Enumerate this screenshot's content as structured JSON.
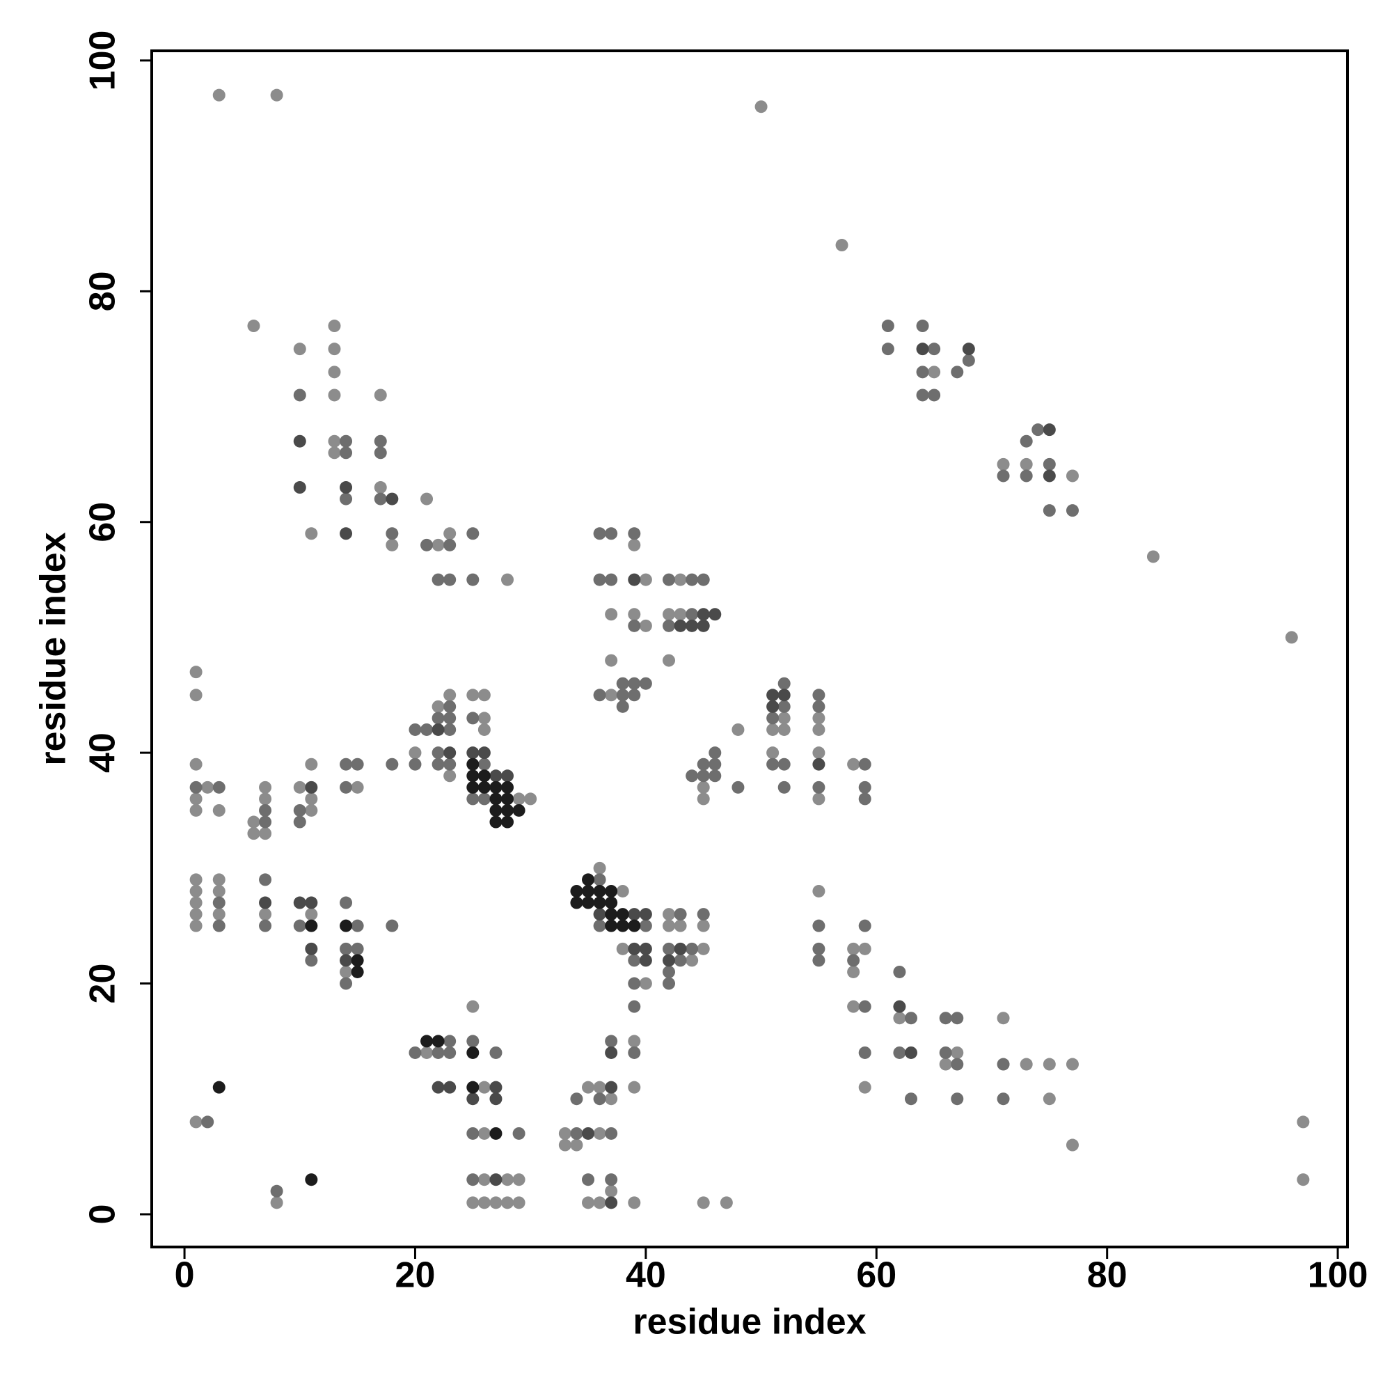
{
  "chart_data": {
    "type": "scatter",
    "x_label": "residue index",
    "y_label": "residue index",
    "xlim": [
      -2.84,
      100.84
    ],
    "ylim": [
      -2.84,
      100.84
    ],
    "xticks": [
      0,
      20,
      40,
      60,
      80,
      100
    ],
    "yticks": [
      0,
      20,
      40,
      60,
      80,
      100
    ],
    "grid": false,
    "series": [
      {
        "color": "#8c8c8c",
        "x": [
          1,
          1,
          1,
          1,
          1,
          1,
          1,
          1,
          1,
          1,
          1,
          2,
          3,
          3,
          3,
          3,
          3,
          6,
          6,
          6,
          7,
          7,
          7,
          7,
          8,
          8,
          10,
          10,
          11,
          11,
          11,
          11,
          11,
          13,
          13,
          13,
          13,
          13,
          13,
          14,
          15,
          17,
          17,
          18,
          20,
          21,
          21,
          22,
          22,
          23,
          23,
          23,
          25,
          25,
          25,
          26,
          26,
          26,
          26,
          26,
          26,
          26,
          27,
          28,
          28,
          28,
          29,
          29,
          29,
          30,
          33,
          33,
          34,
          35,
          35,
          36,
          36,
          36,
          36,
          37,
          37,
          37,
          37,
          37,
          38,
          38,
          39,
          39,
          39,
          39,
          39,
          40,
          40,
          40,
          42,
          42,
          42,
          42,
          43,
          43,
          43,
          44,
          45,
          45,
          45,
          45,
          45,
          47,
          48,
          50,
          51,
          51,
          52,
          52,
          55,
          55,
          55,
          55,
          55,
          57,
          58,
          58,
          58,
          58,
          59,
          59,
          62,
          65,
          66,
          67,
          71,
          71,
          73,
          73,
          75,
          75,
          77,
          77,
          77,
          84,
          96,
          97,
          97
        ],
        "y": [
          47,
          45,
          39,
          36,
          35,
          29,
          28,
          27,
          26,
          25,
          8,
          37,
          97,
          35,
          29,
          28,
          26,
          77,
          34,
          33,
          37,
          36,
          33,
          26,
          97,
          1,
          75,
          37,
          59,
          39,
          36,
          35,
          26,
          77,
          75,
          73,
          71,
          67,
          66,
          21,
          37,
          71,
          63,
          58,
          40,
          62,
          14,
          58,
          44,
          59,
          45,
          38,
          45,
          18,
          1,
          45,
          43,
          42,
          11,
          7,
          3,
          1,
          1,
          55,
          3,
          1,
          36,
          3,
          1,
          36,
          7,
          6,
          6,
          11,
          1,
          30,
          11,
          7,
          1,
          52,
          48,
          45,
          10,
          2,
          28,
          23,
          58,
          52,
          15,
          11,
          1,
          55,
          51,
          20,
          52,
          48,
          26,
          25,
          55,
          52,
          25,
          22,
          37,
          36,
          25,
          23,
          1,
          1,
          42,
          96,
          42,
          40,
          43,
          42,
          43,
          42,
          40,
          36,
          28,
          84,
          39,
          23,
          21,
          18,
          23,
          11,
          17,
          73,
          13,
          14,
          65,
          17,
          65,
          13,
          13,
          10,
          64,
          13,
          6,
          57,
          50,
          8,
          3
        ]
      },
      {
        "color": "#6e6e6e",
        "x": [
          1,
          2,
          3,
          3,
          3,
          7,
          7,
          7,
          7,
          8,
          10,
          10,
          10,
          10,
          11,
          14,
          14,
          14,
          14,
          14,
          14,
          14,
          14,
          15,
          15,
          15,
          17,
          17,
          17,
          18,
          18,
          18,
          20,
          20,
          20,
          21,
          21,
          22,
          22,
          22,
          22,
          22,
          23,
          23,
          23,
          23,
          23,
          23,
          23,
          23,
          25,
          25,
          25,
          25,
          25,
          25,
          25,
          26,
          26,
          27,
          29,
          34,
          34,
          35,
          36,
          36,
          36,
          36,
          36,
          36,
          37,
          37,
          37,
          37,
          37,
          38,
          38,
          38,
          39,
          39,
          39,
          39,
          39,
          39,
          39,
          39,
          40,
          40,
          42,
          42,
          42,
          42,
          42,
          43,
          43,
          44,
          44,
          44,
          44,
          45,
          45,
          45,
          45,
          46,
          46,
          46,
          48,
          51,
          51,
          52,
          52,
          52,
          52,
          55,
          55,
          55,
          55,
          55,
          55,
          58,
          59,
          59,
          59,
          59,
          59,
          59,
          61,
          61,
          62,
          62,
          63,
          63,
          64,
          64,
          64,
          65,
          65,
          66,
          66,
          67,
          67,
          67,
          67,
          68,
          71,
          71,
          71,
          73,
          73,
          74,
          75,
          75,
          77
        ],
        "y": [
          37,
          8,
          37,
          27,
          25,
          35,
          34,
          29,
          25,
          2,
          71,
          35,
          34,
          25,
          22,
          67,
          66,
          62,
          39,
          37,
          27,
          23,
          20,
          39,
          25,
          23,
          67,
          66,
          62,
          59,
          39,
          25,
          42,
          39,
          14,
          58,
          42,
          55,
          43,
          40,
          39,
          14,
          58,
          55,
          44,
          43,
          42,
          39,
          15,
          14,
          59,
          55,
          43,
          36,
          15,
          7,
          3,
          39,
          36,
          14,
          7,
          10,
          7,
          3,
          59,
          55,
          45,
          29,
          25,
          10,
          59,
          55,
          15,
          7,
          3,
          46,
          45,
          44,
          59,
          51,
          46,
          45,
          22,
          20,
          18,
          14,
          46,
          25,
          55,
          51,
          23,
          21,
          20,
          26,
          22,
          55,
          52,
          38,
          23,
          55,
          39,
          38,
          26,
          40,
          39,
          38,
          37,
          43,
          39,
          46,
          44,
          39,
          37,
          45,
          44,
          37,
          25,
          23,
          22,
          22,
          39,
          37,
          36,
          25,
          18,
          14,
          77,
          75,
          21,
          14,
          17,
          10,
          77,
          73,
          71,
          75,
          71,
          17,
          14,
          73,
          17,
          13,
          10,
          74,
          64,
          13,
          10,
          67,
          64,
          68,
          65,
          61,
          61
        ]
      },
      {
        "color": "#4a4a4a",
        "x": [
          7,
          10,
          10,
          10,
          11,
          11,
          11,
          14,
          14,
          14,
          18,
          22,
          22,
          23,
          23,
          25,
          25,
          26,
          27,
          27,
          27,
          27,
          28,
          35,
          36,
          37,
          37,
          37,
          39,
          39,
          39,
          40,
          40,
          40,
          42,
          43,
          43,
          44,
          45,
          45,
          46,
          51,
          51,
          52,
          55,
          62,
          63,
          64,
          68,
          75,
          75
        ],
        "y": [
          27,
          67,
          63,
          27,
          37,
          27,
          23,
          63,
          59,
          22,
          62,
          42,
          11,
          40,
          11,
          40,
          10,
          40,
          38,
          11,
          10,
          3,
          38,
          7,
          26,
          14,
          11,
          1,
          55,
          26,
          23,
          26,
          23,
          22,
          22,
          51,
          23,
          51,
          52,
          51,
          52,
          45,
          44,
          45,
          39,
          18,
          14,
          75,
          75,
          68,
          64
        ]
      },
      {
        "color": "#1c1c1c",
        "x": [
          3,
          11,
          11,
          14,
          15,
          15,
          21,
          22,
          25,
          25,
          25,
          25,
          25,
          26,
          26,
          27,
          27,
          27,
          27,
          27,
          28,
          28,
          28,
          28,
          29,
          34,
          34,
          35,
          35,
          35,
          36,
          36,
          37,
          37,
          37,
          37,
          38,
          38,
          39
        ],
        "y": [
          11,
          25,
          3,
          25,
          22,
          21,
          15,
          15,
          39,
          38,
          37,
          14,
          11,
          38,
          37,
          37,
          36,
          35,
          34,
          7,
          37,
          36,
          35,
          34,
          35,
          28,
          27,
          29,
          28,
          27,
          28,
          27,
          28,
          27,
          26,
          25,
          26,
          25,
          25
        ]
      }
    ]
  }
}
